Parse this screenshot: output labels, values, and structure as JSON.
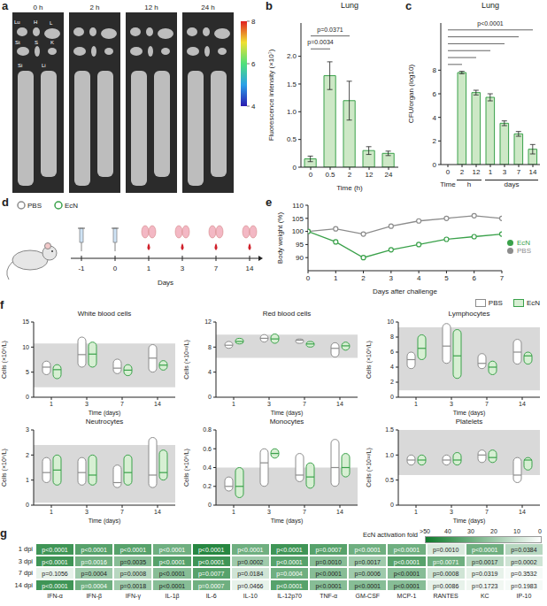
{
  "images": {
    "panel": "a",
    "times": [
      "0 h",
      "2 h",
      "12 h",
      "24 h"
    ],
    "organ_labels": [
      "Lu",
      "H",
      "L",
      "St",
      "S",
      "K",
      "Si",
      "Li"
    ],
    "colorbar": {
      "range": [
        4,
        8
      ],
      "ticks": [
        4,
        6,
        8
      ]
    }
  },
  "diagram": {
    "panel": "d",
    "days": [
      -1,
      0,
      1,
      3,
      7,
      14
    ],
    "axis_label": "Days",
    "series": [
      {
        "name": "PBS",
        "color": "#8c8c8c"
      },
      {
        "name": "EcN",
        "color": "#3aa14a"
      }
    ]
  },
  "chart_data": [
    {
      "panel": "b",
      "type": "bar",
      "title": "Lung",
      "x_label": "Time (h)",
      "y_label": "Fluorescence intensity (×10⁷)",
      "categories": [
        "0",
        "0.5",
        "2",
        "12",
        "24"
      ],
      "values": [
        0.15,
        1.65,
        1.2,
        0.3,
        0.25
      ],
      "errors": [
        0.05,
        0.25,
        0.35,
        0.07,
        0.04
      ],
      "color": "#3aa14a",
      "ylim": [
        0,
        2.6
      ],
      "yticks": [
        0,
        0.5,
        {
          "value": 1,
          "label": "1.0"
        },
        1.5,
        {
          "value": 2,
          "label": "2.0"
        }
      ],
      "annotations": [
        {
          "text": "p=0.0034",
          "from": "0",
          "to": "0.5"
        },
        {
          "text": "p=0.0371",
          "from": "0",
          "to": "2"
        }
      ]
    },
    {
      "panel": "c",
      "type": "bar",
      "title": "Lung",
      "x_label": "Time",
      "y_label": "CFU/organ (log10)",
      "categories": [
        "0",
        "2",
        "12",
        "1",
        "3",
        "7",
        "14"
      ],
      "category_groups": [
        {
          "label": "h",
          "categories": [
            "2",
            "12"
          ]
        },
        {
          "label": "days",
          "categories": [
            "1",
            "3",
            "7",
            "14"
          ]
        }
      ],
      "values": [
        0,
        7.8,
        6.1,
        5.7,
        3.5,
        2.6,
        1.3
      ],
      "errors": [
        0,
        0.1,
        0.2,
        0.3,
        0.2,
        0.2,
        0.4
      ],
      "color": "#3aa14a",
      "ylim": [
        0,
        12
      ],
      "yticks": [
        0,
        2,
        4,
        6,
        8
      ],
      "annotations": [
        {
          "text": "p<0.0001",
          "from": "0",
          "to": [
            "2",
            "12",
            "1",
            "3",
            "7",
            "14"
          ]
        }
      ]
    },
    {
      "panel": "e",
      "type": "line",
      "x_label": "Days after challenge",
      "y_label": "Body weight (%)",
      "x": [
        0,
        1,
        2,
        3,
        4,
        5,
        6,
        7
      ],
      "xlim": [
        0,
        7
      ],
      "xticks": [
        0,
        1,
        2,
        3,
        4,
        5,
        6,
        7
      ],
      "ylim": [
        85,
        110
      ],
      "yticks": [
        90,
        95,
        100,
        105,
        110
      ],
      "legend": "right",
      "series": [
        {
          "name": "PBS",
          "color": "#8c8c8c",
          "marker": "circle",
          "values": [
            100,
            101,
            99,
            102,
            104,
            105,
            106,
            105
          ]
        },
        {
          "name": "EcN",
          "color": "#3aa14a",
          "marker": "circle",
          "values": [
            100,
            96,
            90,
            93,
            95,
            97,
            98,
            99
          ]
        }
      ]
    },
    {
      "panel": "f",
      "type": "range",
      "x_label": "Time (days)",
      "categories": [
        "1",
        "3",
        "7",
        "14"
      ],
      "legend": "top",
      "series": [
        {
          "name": "PBS",
          "color": "#8c8c8c"
        },
        {
          "name": "EcN",
          "color": "#3aa14a"
        }
      ],
      "subplots": [
        {
          "title": "White blood cells",
          "y_label": "Cells (×10⁹/L)",
          "ylim": [
            0,
            15
          ],
          "yticks": [
            0,
            5,
            10,
            15
          ],
          "reference_range": [
            2,
            10.7
          ],
          "values": [
            {
              "min": [
                4.5,
                6.0,
                4.7,
                5.0
              ],
              "median": [
                6.0,
                8.5,
                5.8,
                7.8
              ],
              "max": [
                7.2,
                12.0,
                7.6,
                10.5
              ]
            },
            {
              "min": [
                3.7,
                6.0,
                4.3,
                5.4
              ],
              "median": [
                5.5,
                8.6,
                5.4,
                6.4
              ],
              "max": [
                6.5,
                11.0,
                6.5,
                7.3
              ]
            }
          ]
        },
        {
          "title": "Red blood cells",
          "y_label": "Cells (×10¹²/L)",
          "ylim": [
            0,
            12
          ],
          "yticks": [
            0,
            4,
            8,
            12
          ],
          "reference_range": [
            6.3,
            10
          ],
          "values": [
            {
              "min": [
                7.8,
                8.8,
                8.6,
                6.4
              ],
              "median": [
                8.3,
                9.4,
                9.1,
                7.8
              ],
              "max": [
                8.9,
                10.0,
                9.3,
                8.7
              ]
            },
            {
              "min": [
                8.5,
                8.6,
                8.0,
                7.5
              ],
              "median": [
                8.9,
                9.3,
                8.5,
                8.2
              ],
              "max": [
                9.4,
                10.1,
                8.9,
                8.8
              ]
            }
          ]
        },
        {
          "title": "Lymphocytes",
          "y_label": "Cells (×10⁹/L)",
          "ylim": [
            0,
            10
          ],
          "yticks": [
            0,
            2,
            4,
            6,
            8,
            10
          ],
          "reference_range": [
            0.9,
            9.3
          ],
          "values": [
            {
              "min": [
                3.8,
                4.5,
                3.8,
                4.4
              ],
              "median": [
                5.0,
                6.8,
                4.5,
                6.0
              ],
              "max": [
                6.0,
                9.8,
                5.8,
                7.7
              ]
            },
            {
              "min": [
                5.0,
                2.5,
                3.0,
                4.4
              ],
              "median": [
                6.5,
                5.5,
                4.0,
                5.5
              ],
              "max": [
                8.3,
                9.0,
                4.8,
                6.0
              ]
            }
          ]
        },
        {
          "title": "Neutrocytes",
          "y_label": "Cells (×10⁹/L)",
          "ylim": [
            0,
            3
          ],
          "yticks": [
            0,
            1,
            2,
            3
          ],
          "reference_range": [
            0.1,
            2.4
          ],
          "values": [
            {
              "min": [
                0.9,
                0.8,
                0.7,
                0.7
              ],
              "median": [
                1.3,
                1.3,
                0.9,
                1.2
              ],
              "max": [
                1.9,
                1.9,
                1.6,
                2.7
              ]
            },
            {
              "min": [
                0.8,
                0.8,
                0.8,
                1.0
              ],
              "median": [
                1.4,
                1.2,
                1.3,
                1.3
              ],
              "max": [
                2.0,
                2.0,
                2.0,
                2.2
              ]
            }
          ]
        },
        {
          "title": "Monocytes",
          "y_label": "Cells (×10⁹/L)",
          "ylim": [
            0,
            0.8
          ],
          "yticks": [
            0,
            0.2,
            0.4,
            0.6,
            0.8
          ],
          "reference_range": [
            0,
            0.4
          ],
          "values": [
            {
              "min": [
                0.15,
                0.2,
                0.25,
                0.2
              ],
              "median": [
                0.2,
                0.45,
                0.32,
                0.4
              ],
              "max": [
                0.3,
                0.6,
                0.55,
                0.7
              ]
            },
            {
              "min": [
                0.08,
                0.5,
                0.18,
                0.3
              ],
              "median": [
                0.2,
                0.55,
                0.3,
                0.4
              ],
              "max": [
                0.4,
                0.6,
                0.45,
                0.55
              ]
            }
          ]
        },
        {
          "title": "Platelets",
          "y_label": "Cells (×10¹²/L)",
          "ylim": [
            0,
            1.5
          ],
          "yticks": [
            0,
            0.5,
            {
              "value": 1,
              "label": "1.0"
            },
            1.5
          ],
          "reference_range": [
            0.6,
            1.5
          ],
          "values": [
            {
              "min": [
                0.8,
                0.8,
                0.85,
                0.45
              ],
              "median": [
                0.9,
                0.9,
                1.0,
                0.6
              ],
              "max": [
                1.0,
                1.0,
                1.1,
                0.95
              ]
            },
            {
              "min": [
                0.8,
                0.8,
                0.85,
                0.7
              ],
              "median": [
                0.9,
                0.9,
                0.95,
                0.9
              ],
              "max": [
                1.0,
                1.05,
                1.1,
                0.95
              ]
            }
          ]
        }
      ]
    },
    {
      "panel": "g",
      "type": "heatmap",
      "color": "#0f7a2c",
      "rows": [
        "1 dpi",
        "3 dpi",
        "7 dpi",
        "14 dpi"
      ],
      "columns": [
        "IFN-α",
        "IFN-β",
        "IFN-γ",
        "IL-1β",
        "IL-6",
        "IL-10",
        "IL-12p70",
        "TNF-α",
        "GM-CSF",
        "MCP-1",
        "RANTES",
        "KC",
        "IP-10"
      ],
      "values": [
        [
          40,
          35,
          35,
          30,
          45,
          30,
          40,
          35,
          30,
          30,
          8,
          30,
          15
        ],
        [
          40,
          30,
          25,
          35,
          40,
          20,
          35,
          25,
          20,
          35,
          30,
          15,
          10
        ],
        [
          5,
          20,
          15,
          25,
          35,
          10,
          30,
          25,
          20,
          25,
          10,
          5,
          2
        ],
        [
          40,
          30,
          20,
          25,
          30,
          5,
          35,
          25,
          25,
          25,
          5,
          3,
          2
        ]
      ],
      "cell_labels": [
        [
          "p<0.0001",
          "p<0.0001",
          "p<0.0001",
          "p<0.0001",
          "p<0.0001",
          "p<0.0001",
          "p<0.0001",
          "p=0.0007",
          "p<0.0001",
          "p<0.0001",
          "p=0.0010",
          "p<0.0001",
          "p=0.0384"
        ],
        [
          "p<0.0001",
          "p=0.0016",
          "p=0.0035",
          "p<0.0001",
          "p<0.0001",
          "p=0.0002",
          "p<0.0001",
          "p=0.0010",
          "p=0.0017",
          "p<0.0001",
          "p=0.0071",
          "p=0.0017",
          "p=0.0002"
        ],
        [
          "p=0.1056",
          "p=0.0004",
          "p=0.0008",
          "p<0.0001",
          "p=0.0077",
          "p=0.0184",
          "p=0.0004",
          "p<0.0001",
          "p=0.0006",
          "p<0.0001",
          "p=0.0008",
          "p=0.0319",
          "p=0.3532"
        ],
        [
          "p<0.0001",
          "p=0.0004",
          "p=0.0018",
          "p<0.0001",
          "p=0.0007",
          "p=0.0466",
          "p<0.0001",
          "p<0.0001",
          "p<0.0001",
          "p<0.0001",
          "p=0.0086",
          "p=0.1723",
          "p=0.1983"
        ]
      ],
      "colorbar": {
        "title": "EcN activation fold",
        "range": [
          0,
          50
        ],
        "ticks": [
          {
            "value": 50,
            "label": ">50"
          },
          40,
          30,
          20,
          10,
          0
        ]
      }
    }
  ]
}
